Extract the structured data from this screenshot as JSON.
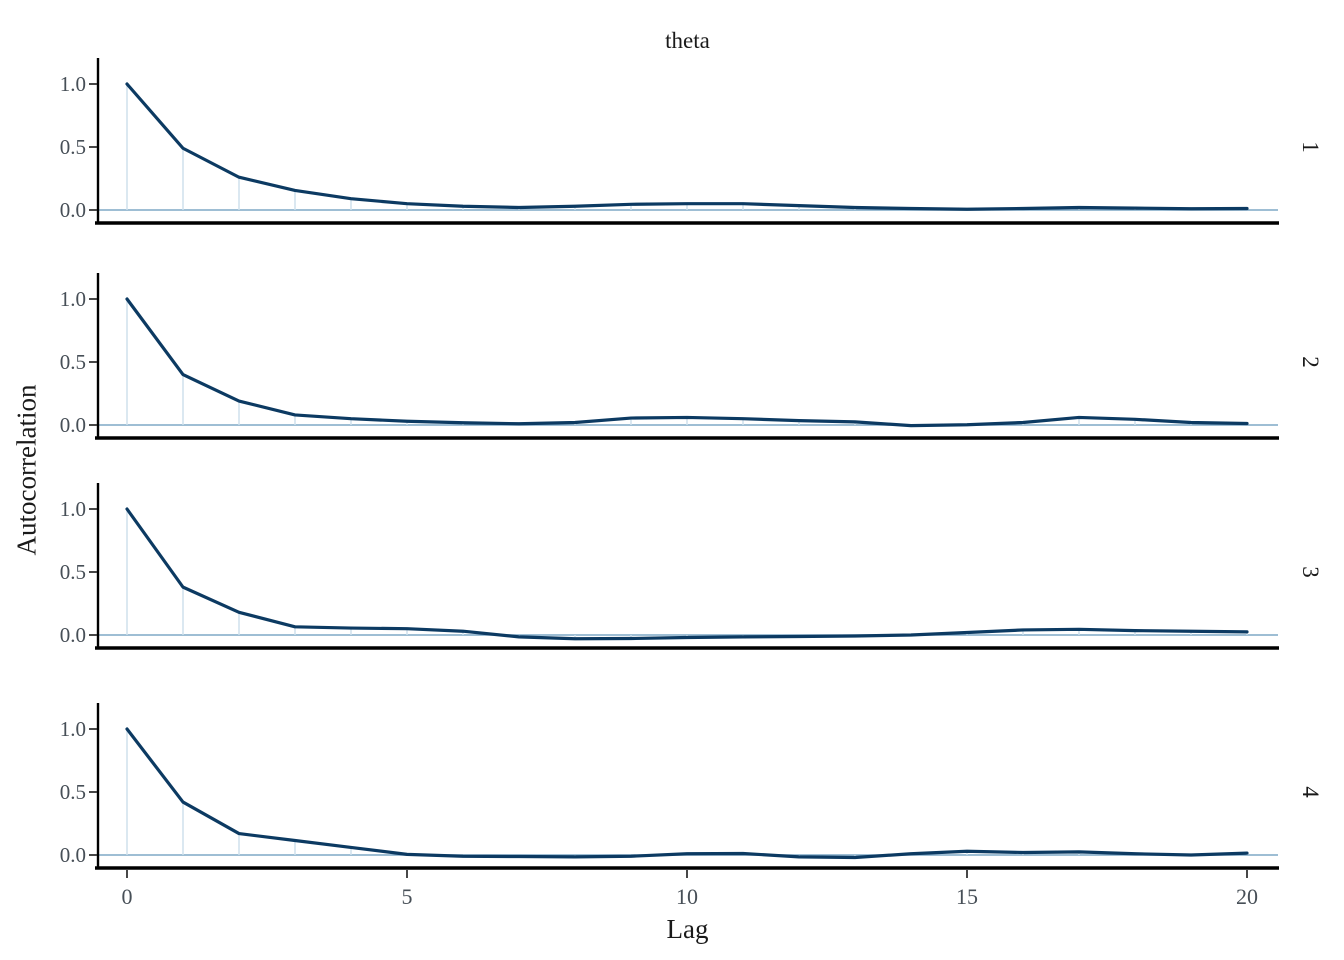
{
  "chart_data": {
    "type": "line",
    "subtype": "autocorrelation-facets",
    "title": "theta",
    "xlabel": "Lag",
    "ylabel": "Autocorrelation",
    "x": [
      0,
      1,
      2,
      3,
      4,
      5,
      6,
      7,
      8,
      9,
      10,
      11,
      12,
      13,
      14,
      15,
      16,
      17,
      18,
      19,
      20
    ],
    "x_tick_values": [
      0,
      5,
      10,
      15,
      20
    ],
    "x_tick_labels": [
      "0",
      "5",
      "10",
      "15",
      "20"
    ],
    "y_tick_values": [
      1.0,
      0.5,
      0.0
    ],
    "y_tick_labels": [
      "1.0",
      "0.5",
      "0.0"
    ],
    "xlim": [
      -0.54,
      20.55
    ],
    "ylim": [
      -0.1,
      1.21
    ],
    "grid": false,
    "legend": "none",
    "facets": [
      {
        "label": "1",
        "values": [
          1.0,
          0.49,
          0.26,
          0.155,
          0.09,
          0.05,
          0.03,
          0.02,
          0.03,
          0.045,
          0.05,
          0.05,
          0.035,
          0.02,
          0.012,
          0.006,
          0.012,
          0.02,
          0.015,
          0.01,
          0.012
        ]
      },
      {
        "label": "2",
        "values": [
          1.0,
          0.4,
          0.19,
          0.08,
          0.05,
          0.03,
          0.018,
          0.01,
          0.02,
          0.055,
          0.06,
          0.05,
          0.035,
          0.025,
          -0.005,
          0.002,
          0.02,
          0.06,
          0.045,
          0.02,
          0.012
        ]
      },
      {
        "label": "3",
        "values": [
          1.0,
          0.38,
          0.18,
          0.065,
          0.055,
          0.05,
          0.03,
          -0.015,
          -0.03,
          -0.028,
          -0.02,
          -0.015,
          -0.012,
          -0.008,
          0.0,
          0.02,
          0.04,
          0.045,
          0.035,
          0.03,
          0.025
        ]
      },
      {
        "label": "4",
        "values": [
          1.0,
          0.42,
          0.17,
          0.115,
          0.06,
          0.005,
          -0.01,
          -0.012,
          -0.015,
          -0.01,
          0.01,
          0.012,
          -0.015,
          -0.02,
          0.01,
          0.03,
          0.02,
          0.025,
          0.01,
          0.0,
          0.015
        ]
      }
    ],
    "colors": {
      "acf_line": "#0c3a62",
      "lag_segment": "#cfe0ec",
      "zero_line": "#7fa8c6",
      "axis_line": "#000000",
      "tick_mark": "#333333",
      "tick_label": "#474f57",
      "text": "#1a1a1a",
      "background": "#ffffff"
    }
  }
}
